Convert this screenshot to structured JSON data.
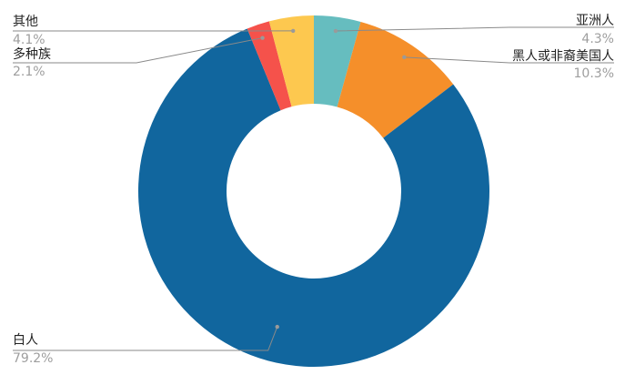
{
  "chart_data": {
    "type": "pie",
    "donut": true,
    "slices": [
      {
        "label": "亚洲人",
        "value": 4.3,
        "value_label": "4.3%",
        "color": "#66bdbf"
      },
      {
        "label": "黑人或非裔美国人",
        "value": 10.3,
        "value_label": "10.3%",
        "color": "#f58f2a"
      },
      {
        "label": "白人",
        "value": 79.2,
        "value_label": "79.2%",
        "color": "#11669e"
      },
      {
        "label": "多种族",
        "value": 2.1,
        "value_label": "2.1%",
        "color": "#f5524b"
      },
      {
        "label": "其他",
        "value": 4.1,
        "value_label": "4.1%",
        "color": "#fdc84f"
      }
    ],
    "legend": "none"
  }
}
